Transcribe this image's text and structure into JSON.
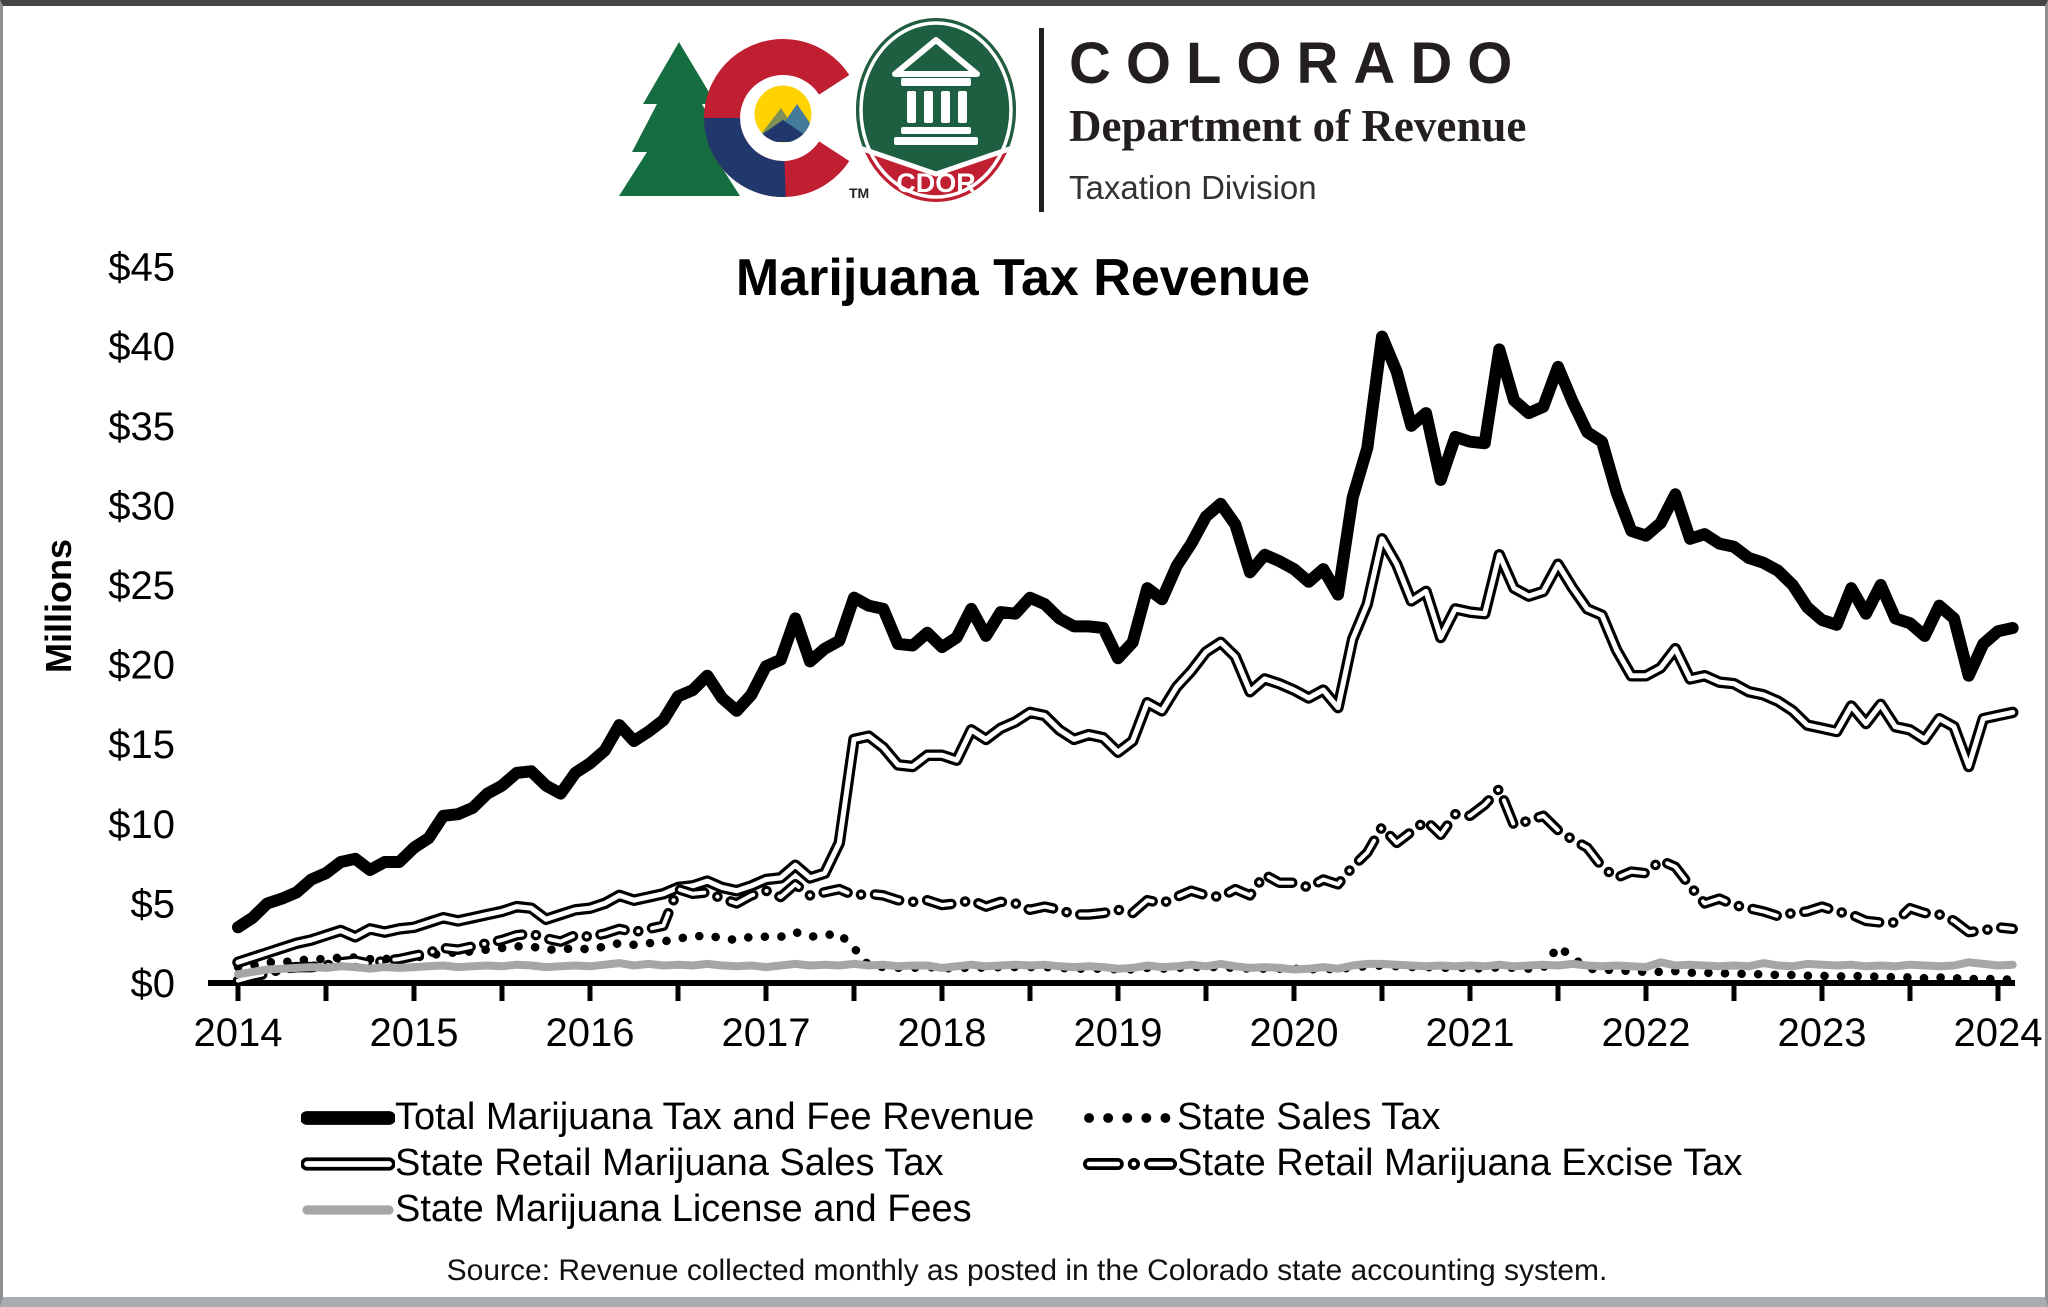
{
  "header": {
    "brand_title": "COLORADO",
    "brand_subtitle": "Department of Revenue",
    "brand_division": "Taxation Division",
    "badge_label": "CDOR",
    "trademark": "TM"
  },
  "source_note": "Source: Revenue collected monthly as posted in the Colorado state accounting system.",
  "colors": {
    "line_black": "#000000",
    "line_gray": "#a6a6a6",
    "logo_green": "#156e3f",
    "logo_red": "#c01f32",
    "logo_yellow": "#ffd200",
    "logo_navy": "#20386b",
    "badge_green": "#1e5f41"
  },
  "chart_data": {
    "type": "line",
    "title": "Marijuana Tax Revenue",
    "xlabel": "",
    "ylabel": "Millions",
    "ylim": [
      0,
      45
    ],
    "grid": false,
    "legend_position": "bottom",
    "x_monthly_start": "2014-01",
    "x_monthly_end": "2024-02",
    "x_tick_years": [
      "2014",
      "2015",
      "2016",
      "2017",
      "2018",
      "2019",
      "2020",
      "2021",
      "2022",
      "2023",
      "2024"
    ],
    "y_ticks": [
      {
        "label": "$0",
        "value": 0
      },
      {
        "label": "$5",
        "value": 5
      },
      {
        "label": "$10",
        "value": 10
      },
      {
        "label": "$15",
        "value": 15
      },
      {
        "label": "$20",
        "value": 20
      },
      {
        "label": "$25",
        "value": 25
      },
      {
        "label": "$30",
        "value": 30
      },
      {
        "label": "$35",
        "value": 35
      },
      {
        "label": "$40",
        "value": 40
      },
      {
        "label": "$45",
        "value": 45
      }
    ],
    "series": [
      {
        "name": "Total Marijuana Tax and Fee Revenue",
        "style": "thick-solid",
        "color": "#000000",
        "values": [
          3.5,
          4.1,
          5.0,
          5.3,
          5.7,
          6.5,
          6.9,
          7.6,
          7.8,
          7.1,
          7.6,
          7.6,
          8.5,
          9.1,
          10.5,
          10.6,
          11.0,
          11.9,
          12.4,
          13.2,
          13.3,
          12.4,
          11.9,
          13.2,
          13.8,
          14.6,
          16.2,
          15.2,
          15.8,
          16.5,
          18.0,
          18.4,
          19.3,
          17.9,
          17.1,
          18.1,
          19.9,
          20.3,
          22.9,
          20.2,
          21.0,
          21.5,
          24.2,
          23.7,
          23.5,
          21.3,
          21.2,
          22.0,
          21.1,
          21.7,
          23.5,
          21.8,
          23.3,
          23.2,
          24.2,
          23.8,
          22.9,
          22.4,
          22.4,
          22.3,
          20.4,
          21.4,
          24.8,
          24.1,
          26.2,
          27.6,
          29.3,
          30.1,
          28.8,
          25.8,
          26.9,
          26.5,
          26.0,
          25.2,
          26.0,
          24.4,
          30.5,
          33.6,
          40.6,
          38.4,
          35.0,
          35.8,
          31.6,
          34.3,
          34.0,
          33.9,
          39.8,
          36.6,
          35.8,
          36.2,
          38.7,
          36.5,
          34.6,
          34.0,
          30.8,
          28.4,
          28.1,
          28.9,
          30.7,
          27.9,
          28.2,
          27.6,
          27.4,
          26.7,
          26.4,
          25.9,
          25.0,
          23.6,
          22.8,
          22.5,
          24.8,
          23.2,
          25.0,
          22.9,
          22.6,
          21.8,
          23.7,
          22.9,
          19.3,
          21.3,
          22.1,
          22.3
        ]
      },
      {
        "name": "State Sales Tax",
        "style": "dotted",
        "color": "#000000",
        "values": [
          1.0,
          1.1,
          1.3,
          1.3,
          1.4,
          1.5,
          1.5,
          1.6,
          1.6,
          1.5,
          1.5,
          1.6,
          1.6,
          1.7,
          1.9,
          1.9,
          2.0,
          2.1,
          2.2,
          2.3,
          2.3,
          2.1,
          2.1,
          2.2,
          2.1,
          2.3,
          2.5,
          2.4,
          2.5,
          2.6,
          2.8,
          2.9,
          3.0,
          2.8,
          2.7,
          2.9,
          2.9,
          2.9,
          3.2,
          2.9,
          3.0,
          3.1,
          2.2,
          1.1,
          1.0,
          0.95,
          0.95,
          1.0,
          0.95,
          0.9,
          1.0,
          0.95,
          1.0,
          1.0,
          1.0,
          1.0,
          0.95,
          0.9,
          0.9,
          0.9,
          0.85,
          0.85,
          0.95,
          0.9,
          0.95,
          1.0,
          1.0,
          1.0,
          0.95,
          0.9,
          0.9,
          0.9,
          0.9,
          0.85,
          0.9,
          0.85,
          1.0,
          1.05,
          1.1,
          1.05,
          1.0,
          1.0,
          0.95,
          0.95,
          0.95,
          0.9,
          1.0,
          0.95,
          0.9,
          0.95,
          2.3,
          1.6,
          0.9,
          0.85,
          0.8,
          0.75,
          0.7,
          0.7,
          0.75,
          0.65,
          0.65,
          0.6,
          0.6,
          0.55,
          0.55,
          0.5,
          0.5,
          0.45,
          0.45,
          0.4,
          0.45,
          0.4,
          0.4,
          0.35,
          0.35,
          0.3,
          0.35,
          0.3,
          0.25,
          0.25,
          0.25,
          0.2
        ]
      },
      {
        "name": "State Retail Marijuana Sales Tax",
        "style": "double",
        "color": "#000000",
        "values": [
          1.3,
          1.6,
          1.9,
          2.2,
          2.5,
          2.7,
          3.0,
          3.3,
          2.9,
          3.4,
          3.2,
          3.4,
          3.5,
          3.8,
          4.1,
          3.9,
          4.1,
          4.3,
          4.5,
          4.8,
          4.7,
          4.0,
          4.3,
          4.6,
          4.7,
          5.0,
          5.5,
          5.2,
          5.4,
          5.6,
          6.0,
          6.1,
          6.4,
          6.0,
          5.8,
          6.1,
          6.5,
          6.6,
          7.4,
          6.6,
          6.9,
          8.8,
          15.3,
          15.5,
          14.8,
          13.7,
          13.6,
          14.3,
          14.3,
          14.0,
          15.9,
          15.3,
          16.0,
          16.4,
          17.0,
          16.8,
          15.9,
          15.3,
          15.6,
          15.4,
          14.5,
          15.2,
          17.6,
          17.1,
          18.6,
          19.6,
          20.8,
          21.4,
          20.5,
          18.3,
          19.1,
          18.8,
          18.4,
          17.9,
          18.4,
          17.3,
          21.6,
          23.8,
          27.9,
          26.3,
          24.0,
          24.6,
          21.7,
          23.5,
          23.3,
          23.2,
          26.9,
          24.8,
          24.3,
          24.6,
          26.3,
          24.8,
          23.5,
          23.1,
          20.9,
          19.3,
          19.3,
          19.8,
          21.0,
          19.1,
          19.3,
          18.9,
          18.8,
          18.3,
          18.1,
          17.7,
          17.1,
          16.2,
          16.0,
          15.8,
          17.4,
          16.3,
          17.5,
          16.1,
          15.9,
          15.3,
          16.6,
          16.1,
          13.6,
          16.6,
          16.8,
          17.0
        ]
      },
      {
        "name": "State Retail Marijuana Excise Tax",
        "style": "dash-dot",
        "color": "#000000",
        "values": [
          0.15,
          0.4,
          0.6,
          0.9,
          1.0,
          1.0,
          1.1,
          1.3,
          1.4,
          1.2,
          1.4,
          1.5,
          1.7,
          1.9,
          2.2,
          2.1,
          2.3,
          2.5,
          2.7,
          3.0,
          3.1,
          2.8,
          2.6,
          3.0,
          2.9,
          3.1,
          3.4,
          3.2,
          3.4,
          3.6,
          5.9,
          5.6,
          5.7,
          5.3,
          5.0,
          5.5,
          5.8,
          5.4,
          6.2,
          5.5,
          5.7,
          5.9,
          5.5,
          5.6,
          5.5,
          5.2,
          5.1,
          5.2,
          4.9,
          5.0,
          5.2,
          4.8,
          5.1,
          5.0,
          4.6,
          4.8,
          4.6,
          4.3,
          4.3,
          4.4,
          4.6,
          4.4,
          5.2,
          5.0,
          5.4,
          5.8,
          5.5,
          5.4,
          5.9,
          5.5,
          6.8,
          6.3,
          6.3,
          6.0,
          6.5,
          6.2,
          7.3,
          8.2,
          9.8,
          8.8,
          9.5,
          10.2,
          9.3,
          10.6,
          10.5,
          11.2,
          12.2,
          9.9,
          10.2,
          10.5,
          9.6,
          9.0,
          8.5,
          7.3,
          6.6,
          7.0,
          6.9,
          7.7,
          7.3,
          6.1,
          5.0,
          5.3,
          4.9,
          4.7,
          4.5,
          4.2,
          4.4,
          4.5,
          4.8,
          4.5,
          4.3,
          3.9,
          3.8,
          3.8,
          4.7,
          4.4,
          4.3,
          3.9,
          3.2,
          3.3,
          3.5,
          3.4
        ]
      },
      {
        "name": "State Marijuana License and Fees",
        "style": "solid",
        "color": "#a6a6a6",
        "values": [
          0.55,
          0.7,
          0.85,
          0.9,
          0.95,
          1.0,
          0.95,
          1.05,
          1.0,
          0.9,
          1.0,
          0.95,
          1.0,
          1.05,
          1.1,
          1.0,
          1.05,
          1.1,
          1.05,
          1.15,
          1.1,
          1.0,
          1.05,
          1.1,
          1.05,
          1.15,
          1.25,
          1.1,
          1.2,
          1.1,
          1.15,
          1.1,
          1.2,
          1.1,
          1.05,
          1.1,
          1.0,
          1.1,
          1.2,
          1.1,
          1.15,
          1.1,
          1.2,
          1.1,
          1.15,
          1.05,
          1.1,
          1.1,
          0.95,
          1.05,
          1.15,
          1.05,
          1.1,
          1.15,
          1.1,
          1.15,
          1.05,
          1.0,
          1.05,
          1.0,
          0.9,
          0.95,
          1.1,
          1.0,
          1.05,
          1.15,
          1.05,
          1.2,
          1.05,
          0.95,
          1.0,
          0.95,
          0.85,
          0.9,
          1.0,
          0.9,
          1.1,
          1.2,
          1.2,
          1.15,
          1.1,
          1.05,
          1.1,
          1.05,
          1.1,
          1.05,
          1.15,
          1.05,
          1.1,
          1.15,
          1.1,
          1.2,
          1.1,
          1.05,
          1.1,
          1.05,
          1.0,
          1.3,
          1.1,
          1.15,
          1.1,
          1.05,
          1.1,
          1.05,
          1.25,
          1.1,
          1.05,
          1.2,
          1.15,
          1.1,
          1.15,
          1.05,
          1.1,
          1.05,
          1.15,
          1.1,
          1.05,
          1.1,
          1.3,
          1.2,
          1.1,
          1.15
        ]
      }
    ]
  }
}
